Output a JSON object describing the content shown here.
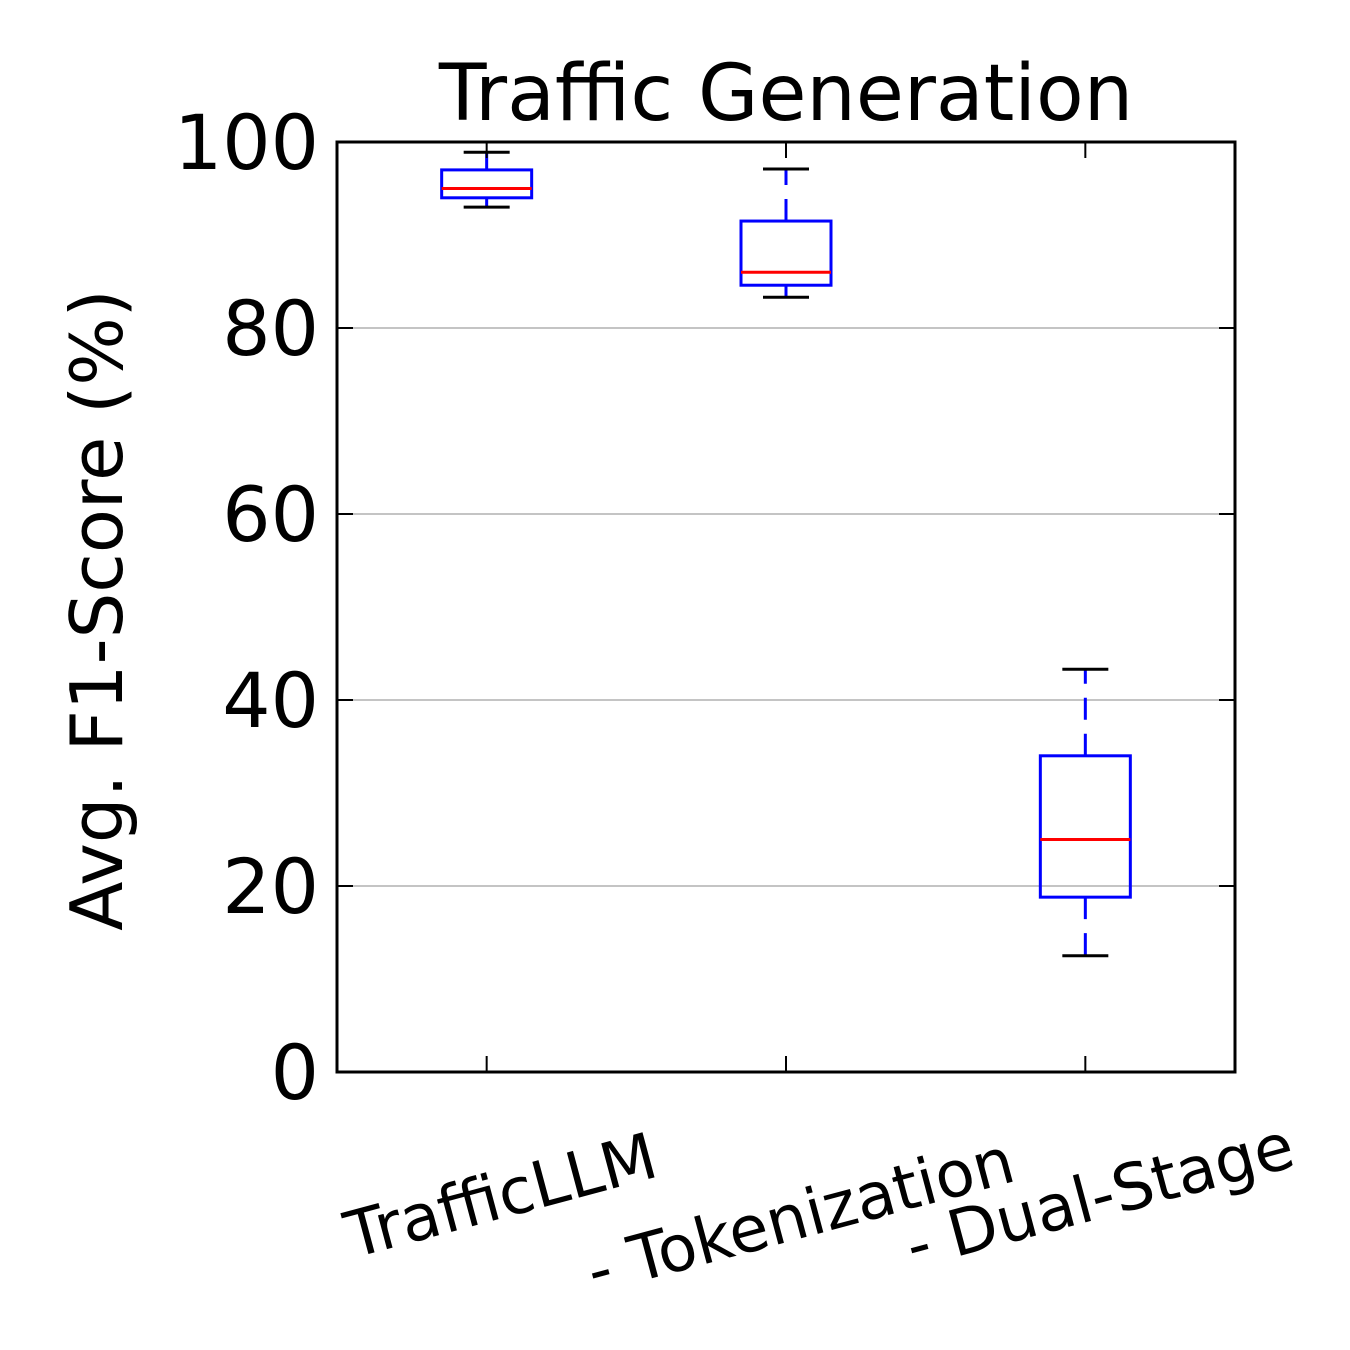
{
  "chart_data": {
    "type": "box",
    "title": "Traffic Generation",
    "xlabel": "",
    "ylabel": "Avg. F1-Score (%)",
    "ylim": [
      0,
      100
    ],
    "yticks": [
      0,
      20,
      40,
      60,
      80,
      100
    ],
    "grid": "horizontal",
    "categories": [
      "TrafficLLM",
      "- Tokenization",
      "- Dual-Stage"
    ],
    "boxes": [
      {
        "category": "TrafficLLM",
        "whisker_low": 93.0,
        "q1": 94.0,
        "median": 95.0,
        "q3": 97.0,
        "whisker_high": 98.9
      },
      {
        "category": "- Tokenization",
        "whisker_low": 83.3,
        "q1": 84.6,
        "median": 86.0,
        "q3": 91.5,
        "whisker_high": 97.1
      },
      {
        "category": "- Dual-Stage",
        "whisker_low": 12.5,
        "q1": 18.8,
        "median": 25.0,
        "q3": 34.0,
        "whisker_high": 43.3
      }
    ],
    "colors": {
      "box": "#0000ff",
      "median": "#ff0000",
      "whisker_cap": "#000000",
      "grid": "#b0b0b0",
      "axes": "#000000"
    }
  }
}
